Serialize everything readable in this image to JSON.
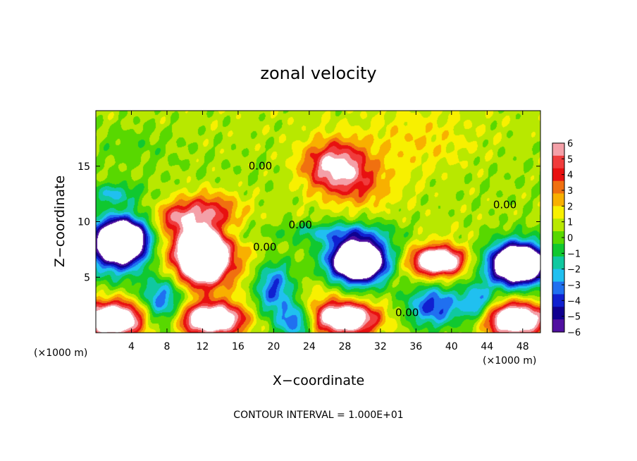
{
  "chart_data": {
    "type": "heatmap",
    "title": "zonal velocity",
    "xlabel": "X−coordinate",
    "ylabel": "Z−coordinate",
    "x_unit_label_left": "(×1000 m)",
    "x_unit_label_right": "(×1000 m)",
    "footer": "CONTOUR INTERVAL = 1.000E+01",
    "xlim": [
      0,
      50
    ],
    "ylim": [
      0,
      20
    ],
    "x_ticks": [
      4,
      8,
      12,
      16,
      20,
      24,
      28,
      32,
      36,
      40,
      44,
      48
    ],
    "y_ticks": [
      5,
      10,
      15
    ],
    "colorbar": {
      "ticks": [
        6,
        5,
        4,
        3,
        2,
        1,
        0,
        -1,
        -2,
        -3,
        -4,
        -5,
        -6
      ],
      "range": [
        -6,
        6
      ],
      "colors": [
        "#f4a0a8",
        "#f03c3c",
        "#e81010",
        "#f07010",
        "#f8b000",
        "#f8f000",
        "#b8e800",
        "#58d800",
        "#10c830",
        "#10c8a0",
        "#20c0f0",
        "#2070f0",
        "#1020d0",
        "#100090",
        "#5010a0"
      ]
    },
    "contour_labels": [
      {
        "text": "0.00",
        "x": 18.5,
        "z": 14.7
      },
      {
        "text": "0.00",
        "x": 23.0,
        "z": 9.4
      },
      {
        "text": "0.00",
        "x": 19.0,
        "z": 7.4
      },
      {
        "text": "0.00",
        "x": 46.0,
        "z": 11.2
      },
      {
        "text": "0.00",
        "x": 35.0,
        "z": 1.5
      }
    ],
    "anomalies": [
      {
        "x": 27.0,
        "z": 15.0,
        "sx": 3.5,
        "sz": 2.2,
        "v": 6.0
      },
      {
        "x": 30.0,
        "z": 13.0,
        "sx": 4.0,
        "sz": 2.0,
        "v": 2.0
      },
      {
        "x": 36.0,
        "z": 17.0,
        "sx": 6.0,
        "sz": 3.0,
        "v": 1.2
      },
      {
        "x": 12.5,
        "z": 11.0,
        "sx": 3.5,
        "sz": 1.6,
        "v": 3.5
      },
      {
        "x": 9.0,
        "z": 10.3,
        "sx": 2.0,
        "sz": 1.2,
        "v": 3.0
      },
      {
        "x": 4.0,
        "z": 17.0,
        "sx": 5.0,
        "sz": 2.0,
        "v": -0.8
      },
      {
        "x": 2.0,
        "z": 12.5,
        "sx": 3.0,
        "sz": 1.0,
        "v": -2.5
      },
      {
        "x": 12.0,
        "z": 7.0,
        "sx": 2.2,
        "sz": 2.0,
        "v": 14.0
      },
      {
        "x": 12.0,
        "z": 7.0,
        "sx": 5.0,
        "sz": 3.2,
        "v": 4.0
      },
      {
        "x": 3.0,
        "z": 8.3,
        "sx": 2.6,
        "sz": 1.8,
        "v": -13.0
      },
      {
        "x": 2.0,
        "z": 7.5,
        "sx": 4.0,
        "sz": 2.8,
        "v": -4.0
      },
      {
        "x": 29.5,
        "z": 6.5,
        "sx": 2.5,
        "sz": 1.5,
        "v": -13.0
      },
      {
        "x": 29.5,
        "z": 6.5,
        "sx": 4.2,
        "sz": 2.6,
        "v": -4.5
      },
      {
        "x": 38.5,
        "z": 6.5,
        "sx": 2.5,
        "sz": 1.1,
        "v": 8.5
      },
      {
        "x": 38.0,
        "z": 6.0,
        "sx": 4.0,
        "sz": 2.2,
        "v": 2.0
      },
      {
        "x": 47.5,
        "z": 6.2,
        "sx": 2.6,
        "sz": 1.5,
        "v": -13.0
      },
      {
        "x": 47.5,
        "z": 6.2,
        "sx": 4.0,
        "sz": 2.4,
        "v": -4.0
      },
      {
        "x": 2.0,
        "z": 1.2,
        "sx": 3.5,
        "sz": 1.6,
        "v": 9.0
      },
      {
        "x": 13.0,
        "z": 1.2,
        "sx": 3.5,
        "sz": 1.4,
        "v": 9.0
      },
      {
        "x": 28.0,
        "z": 1.3,
        "sx": 3.5,
        "sz": 1.4,
        "v": 9.0
      },
      {
        "x": 47.0,
        "z": 1.2,
        "sx": 3.5,
        "sz": 1.5,
        "v": 9.0
      },
      {
        "x": 7.5,
        "z": 2.8,
        "sx": 2.5,
        "sz": 2.5,
        "v": -4.5
      },
      {
        "x": 20.0,
        "z": 4.0,
        "sx": 2.2,
        "sz": 2.5,
        "v": -4.5
      },
      {
        "x": 22.5,
        "z": 1.0,
        "sx": 2.0,
        "sz": 1.5,
        "v": -4.5
      },
      {
        "x": 38.0,
        "z": 2.5,
        "sx": 3.0,
        "sz": 2.0,
        "v": -5.0
      },
      {
        "x": 43.0,
        "z": 2.5,
        "sx": 2.0,
        "sz": 2.0,
        "v": -4.0
      },
      {
        "x": 15.0,
        "z": 9.0,
        "sx": 4.0,
        "sz": 1.2,
        "v": -1.5
      },
      {
        "x": 27.0,
        "z": 9.0,
        "sx": 6.0,
        "sz": 0.9,
        "v": -2.5
      },
      {
        "x": 25.5,
        "z": 3.5,
        "sx": 2.5,
        "sz": 1.5,
        "v": 1.0
      }
    ]
  }
}
